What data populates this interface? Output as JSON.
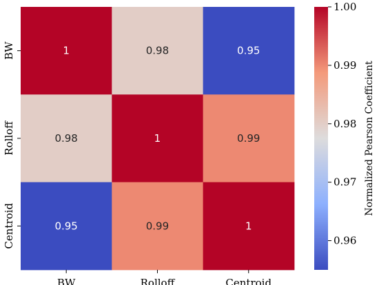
{
  "chart_data": {
    "type": "heatmap",
    "rows": [
      "BW",
      "Rolloff",
      "Centroid"
    ],
    "columns": [
      "BW",
      "Rolloff",
      "Centroid"
    ],
    "values": [
      [
        1.0,
        0.98,
        0.95
      ],
      [
        0.98,
        1.0,
        0.99
      ],
      [
        0.95,
        0.99,
        1.0
      ]
    ],
    "cell_labels": [
      [
        "1",
        "0.98",
        "0.95"
      ],
      [
        "0.98",
        "1",
        "0.99"
      ],
      [
        "0.95",
        "0.99",
        "1"
      ]
    ],
    "colorbar": {
      "label": "Normalized Pearson Coefficient",
      "range": [
        0.955,
        1.0
      ],
      "ticks": [
        0.96,
        0.97,
        0.98,
        0.99,
        1.0
      ],
      "tick_labels": [
        "0.96",
        "0.97",
        "0.98",
        "0.99",
        "1.00"
      ],
      "colormap": "coolwarm"
    },
    "colors": {
      "high": "#b40426",
      "mid": "#dddcdc",
      "low": "#3b4cc0"
    }
  }
}
